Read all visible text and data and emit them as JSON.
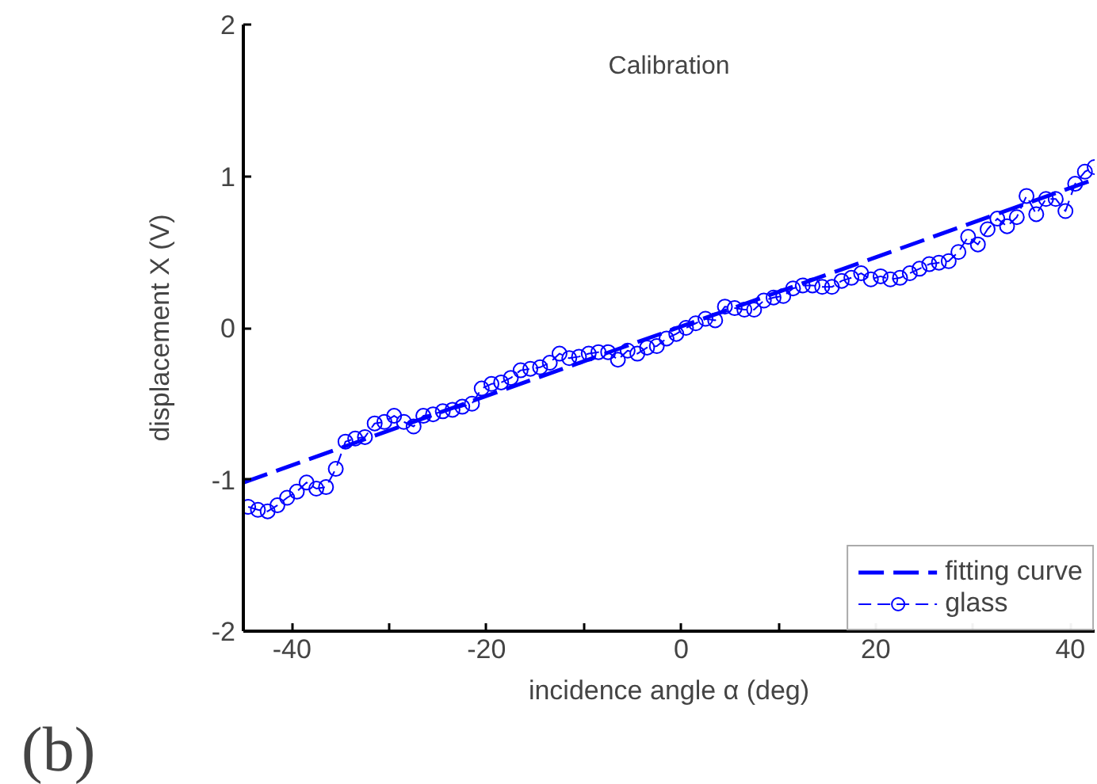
{
  "chart_data": {
    "type": "line",
    "title": "Calibration",
    "xlabel": "incidence angle α (deg)",
    "ylabel": "displacement X (V)",
    "xlim": [
      -45,
      42.5
    ],
    "ylim": [
      -2,
      2
    ],
    "xticks": [
      -40,
      {
        "value": -30,
        "label": null
      },
      -20,
      {
        "value": -10,
        "label": null
      },
      0,
      {
        "value": 10,
        "label": null
      },
      20,
      {
        "value": 30,
        "label": null
      },
      40
    ],
    "yticks": [
      -2,
      -1,
      0,
      1,
      2
    ],
    "grid": false,
    "legend": "bottom right",
    "annotations": [
      "(b)"
    ],
    "series": [
      {
        "name": "fitting curve",
        "color": "#0000ff",
        "line_style": "dashed",
        "marker": "none",
        "x": [
          -45,
          42.5
        ],
        "values": [
          -1.02,
          0.98
        ]
      },
      {
        "name": "glass",
        "color": "#0000ff",
        "line_style": "dashed",
        "marker": "circle",
        "x": [
          -44.5,
          -43.5,
          -42.5,
          -41.5,
          -40.5,
          -39.5,
          -38.5,
          -37.5,
          -36.5,
          -35.5,
          -34.5,
          -33.5,
          -32.5,
          -31.5,
          -30.5,
          -29.5,
          -28.5,
          -27.5,
          -26.5,
          -25.5,
          -24.5,
          -23.5,
          -22.5,
          -21.5,
          -20.5,
          -19.5,
          -18.5,
          -17.5,
          -16.5,
          -15.5,
          -14.5,
          -13.5,
          -12.5,
          -11.5,
          -10.5,
          -9.5,
          -8.5,
          -7.5,
          -6.5,
          -5.5,
          -4.5,
          -3.5,
          -2.5,
          -1.5,
          -0.5,
          0.5,
          1.5,
          2.5,
          3.5,
          4.5,
          5.5,
          6.5,
          7.5,
          8.5,
          9.5,
          10.5,
          11.5,
          12.5,
          13.5,
          14.5,
          15.5,
          16.5,
          17.5,
          18.5,
          19.5,
          20.5,
          21.5,
          22.5,
          23.5,
          24.5,
          25.5,
          26.5,
          27.5,
          28.5,
          29.5,
          30.5,
          31.5,
          32.5,
          33.5,
          34.5,
          35.5,
          36.5,
          37.5,
          38.5,
          39.5,
          40.5,
          41.5,
          42.5
        ],
        "values": [
          -1.18,
          -1.2,
          -1.21,
          -1.17,
          -1.12,
          -1.08,
          -1.02,
          -1.06,
          -1.05,
          -0.93,
          -0.75,
          -0.73,
          -0.72,
          -0.63,
          -0.62,
          -0.58,
          -0.62,
          -0.65,
          -0.58,
          -0.57,
          -0.55,
          -0.54,
          -0.52,
          -0.5,
          -0.4,
          -0.37,
          -0.36,
          -0.33,
          -0.28,
          -0.27,
          -0.26,
          -0.23,
          -0.17,
          -0.2,
          -0.19,
          -0.17,
          -0.16,
          -0.16,
          -0.21,
          -0.15,
          -0.17,
          -0.13,
          -0.12,
          -0.07,
          -0.04,
          0.0,
          0.03,
          0.06,
          0.05,
          0.14,
          0.13,
          0.12,
          0.12,
          0.18,
          0.2,
          0.21,
          0.26,
          0.28,
          0.28,
          0.27,
          0.27,
          0.31,
          0.33,
          0.36,
          0.32,
          0.34,
          0.32,
          0.33,
          0.36,
          0.39,
          0.42,
          0.43,
          0.44,
          0.5,
          0.6,
          0.55,
          0.65,
          0.72,
          0.67,
          0.73,
          0.87,
          0.75,
          0.85,
          0.85,
          0.77,
          0.95,
          1.03,
          1.06
        ]
      }
    ]
  }
}
